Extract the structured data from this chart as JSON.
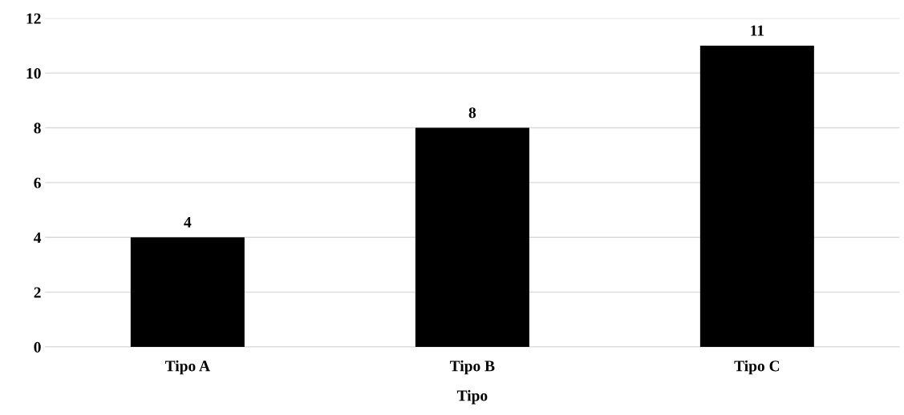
{
  "chart_data": {
    "type": "bar",
    "xlabel": "Tipo",
    "categories": [
      "Tipo A",
      "Tipo B",
      "Tipo C"
    ],
    "values": [
      4,
      8,
      11
    ],
    "color": "#000000",
    "ylim": [
      0,
      12
    ],
    "yticks": [
      0,
      2,
      4,
      6,
      8,
      10,
      12
    ],
    "grid": "y",
    "data_labels": true
  }
}
